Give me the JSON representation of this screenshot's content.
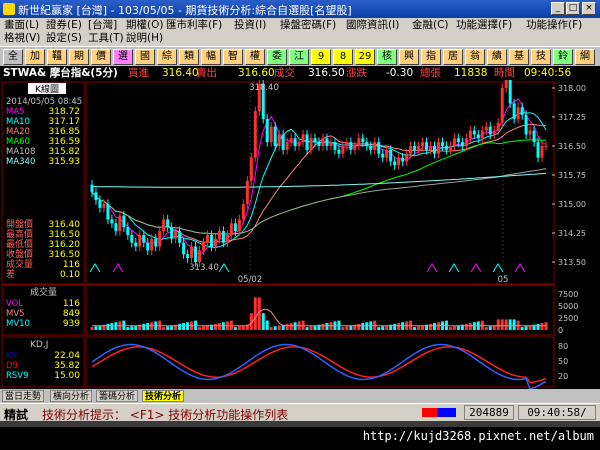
{
  "window": {
    "title": "新世紀贏家 [台灣] - 103/05/05 - 期貨技術分析:綜合自選股[名望股]"
  },
  "menu": {
    "row1": [
      "畫面(L)",
      "證券(E)",
      "[台灣]",
      "期權(O)",
      "匯市利率(F)",
      "投資(I)",
      "操盤密碼(F)",
      "國際資訊(I)",
      "金融(C)",
      "功能選擇(F)",
      "功能操作(F)"
    ],
    "row2": [
      "格視(V)",
      "設定(S)",
      "工具(T)",
      "說明(H)"
    ]
  },
  "toolbar": {
    "buttons": [
      "全",
      "加",
      "韁",
      "期",
      "價",
      "選",
      "國",
      "綜",
      "類",
      "幅",
      "智",
      "權",
      "委",
      "江",
      "9",
      "8",
      "29",
      "核",
      "興",
      "指",
      "居",
      "翁",
      "績",
      "基",
      "技",
      "鈴",
      "綱"
    ]
  },
  "quote": {
    "symbol": "STWA& 摩台指&(5分)",
    "bid_label": "買進",
    "bid": "316.40",
    "ask_label": "賣出",
    "ask": "316.60",
    "last_label": "成交",
    "last": "316.50",
    "change_label": "漲跌",
    "change": "-0.30",
    "vol_label": "總張",
    "volume": "11838",
    "time_label": "時間",
    "time": "09:40:56"
  },
  "price_panel": {
    "tab": "K線圖",
    "datetime": "2014/05/05 08:45",
    "ma": [
      {
        "name": "MA5",
        "value": "318.72",
        "color": "#ff00ff"
      },
      {
        "name": "MA10",
        "value": "317.17",
        "color": "#00ffff"
      },
      {
        "name": "MA20",
        "value": "316.85",
        "color": "#ff8080"
      },
      {
        "name": "MA60",
        "value": "316.59",
        "color": "#00ff00"
      },
      {
        "name": "MA108",
        "value": "315.82",
        "color": "#c0c0c0"
      },
      {
        "name": "MA340",
        "value": "315.93",
        "color": "#80ffff"
      }
    ],
    "stats": [
      {
        "name": "開盤價",
        "value": "316.40"
      },
      {
        "name": "最高價",
        "value": "316.50"
      },
      {
        "name": "最低價",
        "value": "316.20"
      },
      {
        "name": "收盤價",
        "value": "316.50"
      },
      {
        "name": "成交量",
        "value": "116"
      },
      {
        "name": "差",
        "value": "0.10"
      }
    ],
    "high_label": "318.40",
    "low_label": "313.40",
    "y_ticks": [
      "318.00",
      "317.25",
      "316.50",
      "315.75",
      "315.00",
      "314.25",
      "313.50"
    ],
    "x_labels": [
      "05/02",
      "05"
    ]
  },
  "volume_panel": {
    "tab": "成交量",
    "rows": [
      {
        "name": "VOL",
        "value": "116",
        "color": "#ff00ff"
      },
      {
        "name": "MV5",
        "value": "849",
        "color": "#ff8080"
      },
      {
        "name": "MV10",
        "value": "939",
        "color": "#00ffff"
      }
    ],
    "y_ticks": [
      "7500",
      "5000",
      "2500",
      "0"
    ]
  },
  "kd_panel": {
    "tab": "KD,J",
    "rows": [
      {
        "name": "K9",
        "value": "22.04",
        "color": "#0000ff"
      },
      {
        "name": "D9",
        "value": "35.82",
        "color": "#ff0000"
      },
      {
        "name": "RSV9",
        "value": "15.00",
        "color": "#00ffff"
      }
    ],
    "y_ticks": [
      "80",
      "50",
      "20"
    ]
  },
  "status_tabs": {
    "items": [
      "當日走勢",
      "橫向分析",
      "籌碼分析",
      "技術分析"
    ]
  },
  "hint": {
    "label": "精試",
    "text": "技術分析提示： <F1> 技術分析功能操作列表",
    "count": "204889",
    "clock": "09:40:58/"
  },
  "watermark": "http://kujd3268.pixnet.net/album",
  "colors": {
    "up": "#ff0000",
    "down": "#00ffff",
    "accent": "#ffff00",
    "panel_border": "#800000"
  }
}
